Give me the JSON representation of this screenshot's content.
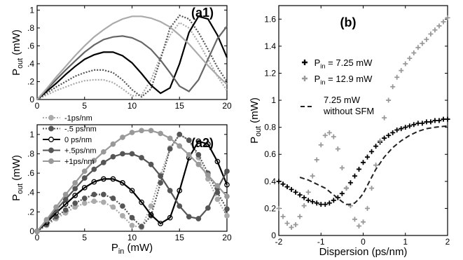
{
  "chart_data": [
    {
      "id": "a1",
      "type": "line",
      "panel_label": "(a1)",
      "xlabel": "",
      "ylabel_main": "P",
      "ylabel_sub": "out",
      "ylabel_unit": " (mW)",
      "xlim": [
        0,
        20
      ],
      "ylim": [
        0,
        1.05
      ],
      "xticks": [
        "0",
        "5",
        "10",
        "15",
        "20"
      ],
      "yticks": [
        "0",
        ".2",
        ".4",
        ".6",
        ".8",
        "1"
      ],
      "series": [
        {
          "color": "#aaaaaa",
          "dash": "2,2",
          "x": [
            0,
            1,
            2,
            3,
            4,
            5,
            6,
            7,
            8,
            9,
            10,
            11,
            12,
            13,
            14,
            15,
            16,
            17,
            18,
            19,
            20
          ],
          "y": [
            0,
            0.05,
            0.1,
            0.14,
            0.18,
            0.21,
            0.22,
            0.22,
            0.19,
            0.12,
            0.04,
            0.05,
            0.22,
            0.48,
            0.72,
            0.86,
            0.8,
            0.64,
            0.45,
            0.26,
            0.1
          ]
        },
        {
          "color": "#555555",
          "dash": "2,2",
          "x": [
            0,
            1,
            2,
            3,
            4,
            5,
            6,
            7,
            8,
            9,
            10,
            11,
            12,
            13,
            14,
            15,
            16,
            17,
            18,
            19,
            20
          ],
          "y": [
            0,
            0.07,
            0.14,
            0.2,
            0.26,
            0.3,
            0.33,
            0.33,
            0.3,
            0.22,
            0.11,
            0.03,
            0.12,
            0.45,
            0.8,
            0.94,
            0.9,
            0.75,
            0.56,
            0.36,
            0.2
          ]
        },
        {
          "color": "#000000",
          "dash": "",
          "x": [
            0,
            1,
            2,
            3,
            4,
            5,
            6,
            7,
            8,
            9,
            10,
            11,
            12,
            13,
            14,
            15,
            16,
            17,
            18,
            19,
            20
          ],
          "y": [
            0,
            0.09,
            0.18,
            0.28,
            0.37,
            0.45,
            0.5,
            0.53,
            0.53,
            0.49,
            0.41,
            0.29,
            0.16,
            0.07,
            0.13,
            0.4,
            0.75,
            0.93,
            0.9,
            0.72,
            0.47
          ]
        },
        {
          "color": "#666666",
          "dash": "",
          "x": [
            0,
            1,
            2,
            3,
            4,
            5,
            6,
            7,
            8,
            9,
            10,
            11,
            12,
            13,
            14,
            15,
            16,
            17,
            18,
            19,
            20
          ],
          "y": [
            0,
            0.11,
            0.22,
            0.33,
            0.43,
            0.53,
            0.61,
            0.67,
            0.7,
            0.71,
            0.69,
            0.64,
            0.56,
            0.44,
            0.3,
            0.15,
            0.09,
            0.22,
            0.45,
            0.68,
            0.82
          ]
        },
        {
          "color": "#aaaaaa",
          "dash": "",
          "x": [
            0,
            1,
            2,
            3,
            4,
            5,
            6,
            7,
            8,
            9,
            10,
            11,
            12,
            13,
            14,
            15,
            16,
            17,
            18,
            19,
            20
          ],
          "y": [
            0,
            0.12,
            0.25,
            0.37,
            0.49,
            0.6,
            0.7,
            0.78,
            0.85,
            0.9,
            0.93,
            0.93,
            0.91,
            0.87,
            0.81,
            0.72,
            0.62,
            0.5,
            0.38,
            0.27,
            0.17
          ]
        }
      ]
    },
    {
      "id": "a2",
      "type": "line",
      "panel_label": "(a2)",
      "xlabel_main": "P",
      "xlabel_sub": "in",
      "xlabel_unit": " (mW)",
      "ylabel_main": "P",
      "ylabel_sub": "out",
      "ylabel_unit": " (mW)",
      "xlim": [
        0,
        20
      ],
      "ylim": [
        0,
        1.1
      ],
      "xticks": [
        "0",
        "5",
        "10",
        "15",
        "20"
      ],
      "yticks": [
        "0",
        ".2",
        ".4",
        ".6",
        ".8",
        "1"
      ],
      "legend": [
        "-1ps/nm",
        "-.5 ps/nm",
        "0 ps/nm",
        "+.5ps/nm",
        "+1ps/nm"
      ],
      "series": [
        {
          "name": "-1ps/nm",
          "color": "#aaaaaa",
          "marker": "filled",
          "dash": "2,2",
          "x": [
            0,
            1,
            2,
            3,
            4,
            5,
            6,
            7,
            8,
            9,
            10,
            11,
            12,
            13,
            14,
            15,
            16,
            17,
            18,
            19,
            20
          ],
          "y": [
            0,
            0.06,
            0.13,
            0.19,
            0.25,
            0.29,
            0.31,
            0.3,
            0.25,
            0.16,
            0.06,
            0.04,
            0.26,
            0.58,
            0.86,
            1.0,
            0.94,
            0.76,
            0.54,
            0.33,
            0.16
          ]
        },
        {
          "name": "-.5 ps/nm",
          "color": "#555555",
          "marker": "filled",
          "dash": "2,2",
          "x": [
            0,
            1,
            2,
            3,
            4,
            5,
            6,
            7,
            8,
            9,
            10,
            11,
            12,
            13,
            14,
            15,
            16,
            17,
            18,
            19,
            20
          ],
          "y": [
            0,
            0.07,
            0.15,
            0.22,
            0.29,
            0.34,
            0.38,
            0.38,
            0.34,
            0.26,
            0.14,
            0.05,
            0.16,
            0.5,
            0.85,
            1.0,
            0.94,
            0.79,
            0.6,
            0.4,
            0.23
          ]
        },
        {
          "name": "0 ps/nm",
          "color": "#000000",
          "marker": "open",
          "dash": "",
          "x": [
            0,
            1,
            2,
            3,
            4,
            5,
            6,
            7,
            8,
            9,
            10,
            11,
            12,
            13,
            14,
            15,
            16,
            17,
            18,
            19,
            20
          ],
          "y": [
            0,
            0.09,
            0.19,
            0.28,
            0.37,
            0.45,
            0.51,
            0.54,
            0.54,
            0.5,
            0.42,
            0.3,
            0.17,
            0.08,
            0.14,
            0.42,
            0.76,
            0.93,
            0.9,
            0.72,
            0.48
          ]
        },
        {
          "name": "+.5ps/nm",
          "color": "#555555",
          "marker": "filled",
          "dash": "",
          "x": [
            0,
            1,
            2,
            3,
            4,
            5,
            6,
            7,
            8,
            9,
            10,
            11,
            12,
            13,
            14,
            15,
            16,
            17,
            18,
            19,
            20
          ],
          "y": [
            0,
            0.11,
            0.22,
            0.33,
            0.44,
            0.55,
            0.64,
            0.71,
            0.77,
            0.8,
            0.8,
            0.76,
            0.69,
            0.57,
            0.42,
            0.26,
            0.15,
            0.13,
            0.24,
            0.44,
            0.62
          ]
        },
        {
          "name": "+1ps/nm",
          "color": "#999999",
          "marker": "filled",
          "dash": "",
          "x": [
            0,
            1,
            2,
            3,
            4,
            5,
            6,
            7,
            8,
            9,
            10,
            11,
            12,
            13,
            14,
            15,
            16,
            17,
            18,
            19,
            20
          ],
          "y": [
            0,
            0.12,
            0.25,
            0.38,
            0.5,
            0.62,
            0.73,
            0.82,
            0.9,
            0.97,
            1.02,
            1.04,
            1.04,
            1.01,
            0.96,
            0.88,
            0.79,
            0.69,
            0.58,
            0.47,
            0.36
          ]
        }
      ]
    },
    {
      "id": "b",
      "type": "scatter",
      "panel_label": "(b)",
      "xlabel": "Dispersion (ps/nm)",
      "ylabel_main": "P",
      "ylabel_sub": "out",
      "ylabel_unit": " (mW)",
      "xlim": [
        -2,
        2
      ],
      "ylim": [
        0,
        1.7
      ],
      "xticks": [
        "-2",
        "-1",
        "0",
        "1",
        "2"
      ],
      "yticks": [
        "0",
        "0.2",
        "0.4",
        "0.6",
        "0.8",
        "1",
        "1.2",
        "1.4",
        "1.6"
      ],
      "legend": [
        {
          "prefix": "P",
          "sub": "in",
          "suffix": " = 7.25 mW",
          "color": "#000000",
          "style": "plus"
        },
        {
          "prefix": "P",
          "sub": "in",
          "suffix": " = 12.9 mW",
          "color": "#999999",
          "style": "plus"
        },
        {
          "line1": "7.25 mW",
          "line2": "without SFM",
          "color": "#222222",
          "style": "dash"
        }
      ],
      "series": [
        {
          "color": "#000000",
          "style": "plus",
          "x": [
            -2,
            -1.9,
            -1.8,
            -1.7,
            -1.6,
            -1.5,
            -1.4,
            -1.3,
            -1.2,
            -1.1,
            -1.0,
            -0.9,
            -0.8,
            -0.7,
            -0.6,
            -0.5,
            -0.4,
            -0.3,
            -0.2,
            -0.1,
            0,
            0.1,
            0.2,
            0.3,
            0.4,
            0.5,
            0.6,
            0.7,
            0.8,
            0.9,
            1.0,
            1.1,
            1.2,
            1.3,
            1.4,
            1.5,
            1.6,
            1.7,
            1.8,
            1.9,
            2.0
          ],
          "y": [
            0.4,
            0.38,
            0.36,
            0.34,
            0.32,
            0.3,
            0.28,
            0.26,
            0.25,
            0.24,
            0.23,
            0.23,
            0.24,
            0.26,
            0.28,
            0.31,
            0.35,
            0.39,
            0.44,
            0.49,
            0.54,
            0.58,
            0.62,
            0.66,
            0.69,
            0.72,
            0.74,
            0.76,
            0.78,
            0.79,
            0.8,
            0.81,
            0.82,
            0.83,
            0.83,
            0.84,
            0.84,
            0.85,
            0.85,
            0.86,
            0.86
          ]
        },
        {
          "color": "#999999",
          "style": "plus",
          "x": [
            -2,
            -1.9,
            -1.8,
            -1.7,
            -1.6,
            -1.5,
            -1.4,
            -1.3,
            -1.2,
            -1.1,
            -1.0,
            -0.9,
            -0.8,
            -0.7,
            -0.6,
            -0.5,
            -0.4,
            -0.3,
            -0.2,
            -0.1,
            0,
            0.1,
            0.2,
            0.3,
            0.4,
            0.5,
            0.6,
            0.7,
            0.8,
            0.9,
            1.0,
            1.1,
            1.2,
            1.3,
            1.4,
            1.5,
            1.6,
            1.7,
            1.8,
            1.9,
            2.0
          ],
          "y": [
            0.2,
            0.14,
            0.09,
            0.06,
            0.08,
            0.14,
            0.22,
            0.32,
            0.44,
            0.56,
            0.67,
            0.74,
            0.76,
            0.73,
            0.64,
            0.5,
            0.35,
            0.22,
            0.12,
            0.07,
            0.1,
            0.2,
            0.35,
            0.52,
            0.7,
            0.87,
            1.0,
            1.1,
            1.17,
            1.22,
            1.27,
            1.31,
            1.35,
            1.39,
            1.42,
            1.45,
            1.49,
            1.52,
            1.55,
            1.58,
            1.61
          ]
        },
        {
          "color": "#222222",
          "style": "dash",
          "x": [
            -1.5,
            -1.3,
            -1.1,
            -0.9,
            -0.7,
            -0.5,
            -0.4,
            -0.3,
            -0.2,
            -0.1,
            0,
            0.1,
            0.2,
            0.3,
            0.5,
            0.7,
            0.9,
            1.1,
            1.3,
            1.5,
            1.7,
            2.0
          ],
          "y": [
            0.43,
            0.41,
            0.38,
            0.35,
            0.3,
            0.25,
            0.23,
            0.23,
            0.24,
            0.27,
            0.31,
            0.37,
            0.43,
            0.49,
            0.58,
            0.65,
            0.7,
            0.74,
            0.77,
            0.79,
            0.8,
            0.81
          ]
        }
      ]
    }
  ]
}
